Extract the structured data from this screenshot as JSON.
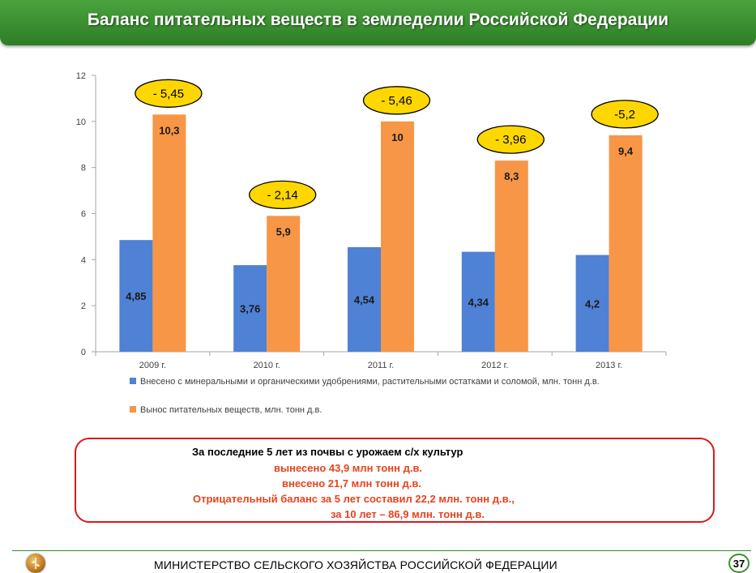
{
  "header": {
    "title": "Баланс питательных веществ в земледелии Российской Федерации"
  },
  "chart_data": {
    "type": "bar",
    "categories": [
      "2009 г.",
      "2010 г.",
      "2011 г.",
      "2012 г.",
      "2013 г."
    ],
    "series": [
      {
        "name": "Внесено с минеральными и органическими удобрениями, растительными остатками и соломой, млн. тонн д.в.",
        "values": [
          4.85,
          3.76,
          4.54,
          4.34,
          4.2
        ],
        "labels": [
          "4,85",
          "3,76",
          "4,54",
          "4,34",
          "4,2"
        ],
        "color": "#4f81d4"
      },
      {
        "name": "Вынос питательных веществ, млн. тонн д.в.",
        "values": [
          10.3,
          5.9,
          10,
          8.3,
          9.4
        ],
        "labels": [
          "10,3",
          "5,9",
          "10",
          "8,3",
          "9,4"
        ],
        "color": "#f79646"
      }
    ],
    "balance_annotations": [
      "- 5,45",
      "- 2,14",
      "- 5,46",
      "- 3,96",
      "-5,2"
    ],
    "yticks": [
      "0",
      "2",
      "4",
      "6",
      "8",
      "10",
      "12"
    ],
    "ylim": [
      0,
      12
    ],
    "legend_position": "bottom",
    "annotation_color": "#ffd700"
  },
  "summary": {
    "line1": "За последние 5 лет из почвы с урожаем с/х культур",
    "line2": "вынесено  43,9  млн тонн  д.в.",
    "line3": "внесено 21,7  млн тонн  д.в.",
    "line4": "Отрицательный баланс за 5 лет составил  22,2  млн. тонн  д.в.,",
    "line5": "за 10 лет – 86,9 млн. тонн д.в."
  },
  "footer": {
    "ministry": "МИНИСТЕРСТВО СЕЛЬСКОГО ХОЗЯЙСТВА РОССИЙСКОЙ ФЕДЕРАЦИИ",
    "page_number": "37"
  }
}
